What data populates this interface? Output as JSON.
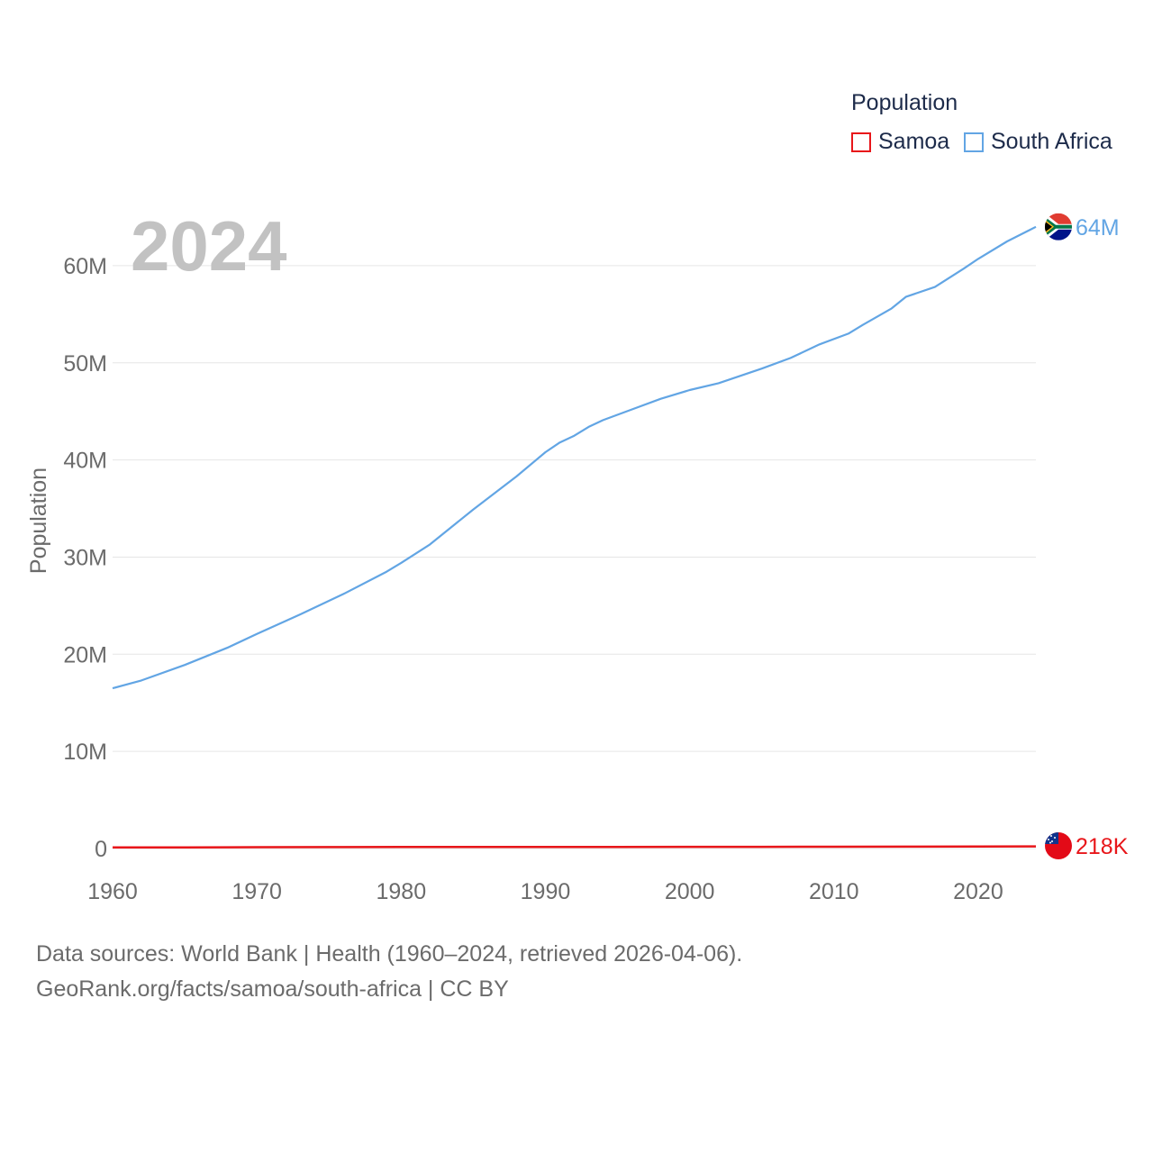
{
  "chart_data": {
    "type": "line",
    "title": "Population",
    "year_label": "2024",
    "xlabel": "",
    "ylabel": "Population",
    "xlim": [
      1960,
      2024
    ],
    "ylim": [
      0,
      65000000
    ],
    "x_ticks": [
      1960,
      1970,
      1980,
      1990,
      2000,
      2010,
      2020
    ],
    "x_tick_labels": [
      "1960",
      "1970",
      "1980",
      "1990",
      "2000",
      "2010",
      "2020"
    ],
    "y_ticks": [
      0,
      10000000,
      20000000,
      30000000,
      40000000,
      50000000,
      60000000
    ],
    "y_tick_labels": [
      "0",
      "10M",
      "20M",
      "30M",
      "40M",
      "50M",
      "60M"
    ],
    "grid": true,
    "legend": {
      "title": "Population",
      "position": "top-right"
    },
    "series": [
      {
        "name": "Samoa",
        "color": "#e8161a",
        "end_label": "218K",
        "x": [
          1960,
          1965,
          1970,
          1975,
          1980,
          1985,
          1990,
          1995,
          2000,
          2005,
          2010,
          2015,
          2020,
          2024
        ],
        "values": [
          108000,
          124000,
          142000,
          152000,
          156000,
          161000,
          163000,
          170000,
          175000,
          180000,
          186000,
          194000,
          205000,
          218000
        ]
      },
      {
        "name": "South Africa",
        "color": "#62a5e4",
        "end_label": "64M",
        "x": [
          1960,
          1962,
          1965,
          1968,
          1970,
          1973,
          1976,
          1979,
          1980,
          1982,
          1985,
          1988,
          1990,
          1991,
          1992,
          1993,
          1994,
          1996,
          1998,
          2000,
          2002,
          2005,
          2007,
          2009,
          2011,
          2012,
          2014,
          2015,
          2017,
          2019,
          2020,
          2022,
          2024
        ],
        "values": [
          16500000,
          17300000,
          18900000,
          20700000,
          22100000,
          24100000,
          26200000,
          28500000,
          29400000,
          31300000,
          34900000,
          38300000,
          40800000,
          41800000,
          42500000,
          43400000,
          44100000,
          45200000,
          46300000,
          47200000,
          47900000,
          49400000,
          50500000,
          51900000,
          53000000,
          53900000,
          55600000,
          56800000,
          57800000,
          59700000,
          60700000,
          62500000,
          64000000
        ]
      }
    ]
  },
  "footer": {
    "line1": "Data sources: World Bank | Health (1960–2024, retrieved 2026-04-06).",
    "line2": "GeoRank.org/facts/samoa/south-africa | CC BY"
  }
}
